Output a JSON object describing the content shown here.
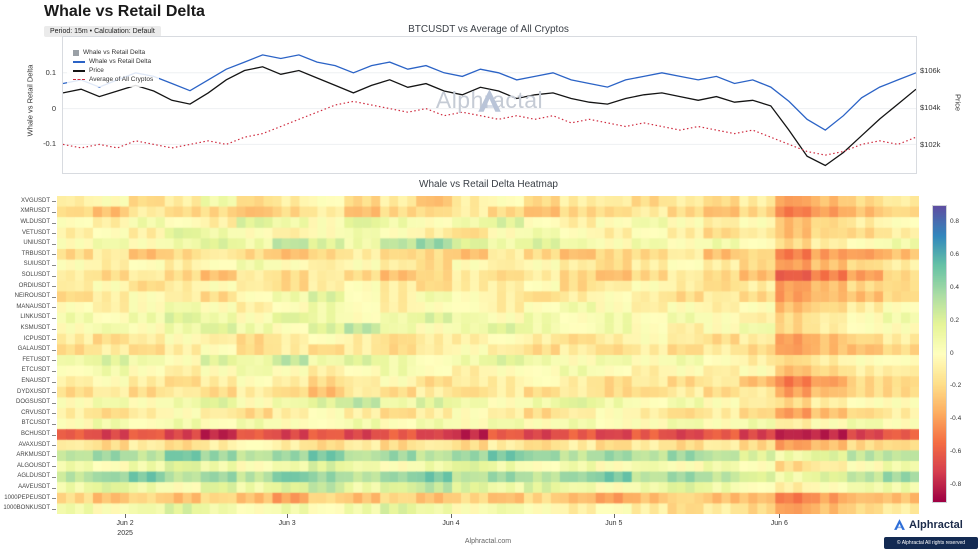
{
  "page": {
    "title": "Whale vs Retail Delta",
    "subtitle": "Period: 15m • Calculation: Default",
    "footer": "Alphractal.com",
    "watermark": "Alphractal",
    "brand": {
      "name": "Alphractal",
      "copyright": "© Alphractal All rights reserved"
    }
  },
  "colors": {
    "delta_blue": "#2b63c6",
    "price_black": "#141414",
    "avg_red": "#cf2b3f",
    "legend_gray": "#9aa0a6",
    "brand_navy": "#132a52",
    "logo_blue": "#2f6fd8"
  },
  "chart_data": [
    {
      "type": "line",
      "title": "BTCUSDT vs Average of All Cryptos",
      "ylabel_left": "Whale vs Retail Delta",
      "ylabel_right": "Price",
      "ylim_left": [
        -0.18,
        0.2
      ],
      "ylim_right": [
        100.5,
        107.8
      ],
      "yticks_left": [
        0.1,
        0,
        -0.1
      ],
      "ytick_labels_left": [
        "0.1",
        "0",
        "-0.1"
      ],
      "yticks_right": [
        106,
        104,
        102
      ],
      "ytick_labels_right": [
        "$106k",
        "$104k",
        "$102k"
      ],
      "legend": [
        {
          "label": "Whale vs Retail Delta",
          "type": "square",
          "color": "#9aa0a6"
        },
        {
          "label": "Whale vs Retail Delta",
          "type": "line",
          "color": "#2b63c6"
        },
        {
          "label": "Price",
          "type": "line",
          "color": "#141414"
        },
        {
          "label": "Average of All Cryptos",
          "type": "dashed",
          "color": "#cf2b3f"
        }
      ],
      "series": [
        {
          "name": "Whale vs Retail Delta",
          "axis": "left",
          "color": "#2b63c6",
          "style": "solid",
          "width": 1.3,
          "values": [
            0.07,
            0.08,
            0.06,
            0.08,
            0.1,
            0.09,
            0.07,
            0.05,
            0.08,
            0.11,
            0.13,
            0.15,
            0.14,
            0.15,
            0.13,
            0.12,
            0.1,
            0.12,
            0.13,
            0.11,
            0.12,
            0.1,
            0.09,
            0.11,
            0.1,
            0.08,
            0.09,
            0.1,
            0.08,
            0.07,
            0.06,
            0.08,
            0.09,
            0.1,
            0.09,
            0.08,
            0.09,
            0.07,
            0.08,
            0.06,
            0.02,
            -0.03,
            -0.06,
            -0.02,
            0.03,
            0.06,
            0.08,
            0.1
          ]
        },
        {
          "name": "Price",
          "axis": "right",
          "color": "#141414",
          "style": "solid",
          "width": 1.3,
          "values": [
            104.8,
            105.0,
            104.6,
            104.9,
            105.2,
            104.9,
            104.4,
            104.2,
            104.8,
            105.5,
            106.0,
            106.2,
            105.8,
            106.0,
            105.6,
            105.2,
            104.8,
            105.2,
            105.5,
            105.1,
            105.3,
            104.9,
            104.7,
            105.1,
            104.9,
            104.5,
            104.7,
            104.8,
            104.5,
            104.3,
            104.2,
            104.5,
            104.7,
            104.8,
            104.6,
            104.4,
            104.6,
            104.3,
            104.4,
            104.1,
            102.8,
            101.4,
            100.9,
            101.6,
            102.5,
            103.4,
            104.2,
            105.0
          ]
        },
        {
          "name": "Average of All Cryptos",
          "axis": "left",
          "color": "#cf2b3f",
          "style": "dotted",
          "width": 1.2,
          "values": [
            -0.1,
            -0.11,
            -0.1,
            -0.11,
            -0.09,
            -0.1,
            -0.11,
            -0.1,
            -0.09,
            -0.1,
            -0.08,
            -0.07,
            -0.05,
            -0.03,
            -0.01,
            0.01,
            0.02,
            0.01,
            0.0,
            -0.01,
            0.0,
            -0.02,
            -0.01,
            -0.02,
            -0.03,
            -0.02,
            -0.03,
            -0.02,
            -0.04,
            -0.03,
            -0.04,
            -0.05,
            -0.04,
            -0.05,
            -0.06,
            -0.05,
            -0.06,
            -0.07,
            -0.06,
            -0.08,
            -0.1,
            -0.12,
            -0.13,
            -0.12,
            -0.1,
            -0.09,
            -0.1,
            -0.08
          ]
        }
      ]
    },
    {
      "type": "heatmap",
      "title": "Whale vs Retail Delta Heatmap",
      "rows": [
        "XVGUSDT",
        "XMRUSDT",
        "WLDUSDT",
        "VETUSDT",
        "UNIUSDT",
        "TRBUSDT",
        "SUIUSDT",
        "SOLUSDT",
        "ORDIUSDT",
        "NEIROUSDT",
        "MANAUSDT",
        "LINKUSDT",
        "KSMUSDT",
        "ICPUSDT",
        "GALAUSDT",
        "FETUSDT",
        "ETCUSDT",
        "ENAUSDT",
        "DYDXUSDT",
        "DOGSUSDT",
        "CRVUSDT",
        "BTCUSDT",
        "BCHUSDT",
        "AVAXUSDT",
        "ARKMUSDT",
        "ALGOUSDT",
        "AGLDUSDT",
        "AAVEUSDT",
        "1000PEPEUSDT",
        "1000BONKUSDT"
      ],
      "x_tick_labels": [
        "Jun 2",
        "Jun 3",
        "Jun 4",
        "Jun 5",
        "Jun 6"
      ],
      "x_tick_positions": [
        0.079,
        0.267,
        0.457,
        0.646,
        0.838
      ],
      "x_year_label": "2025",
      "colorbar": {
        "vmin": -0.9,
        "vmax": 0.9,
        "ticks": [
          0.8,
          0.6,
          0.4,
          0.2,
          0,
          -0.2,
          -0.4,
          -0.6,
          -0.8
        ],
        "tick_labels": [
          "0.8",
          "0.6",
          "0.4",
          "0.2",
          "0",
          "-0.2",
          "-0.4",
          "-0.6",
          "-0.8"
        ]
      },
      "values": [
        [
          -0.1,
          0.0,
          -0.2,
          -0.1,
          0.1,
          -0.2,
          -0.1,
          0.0,
          -0.2,
          -0.1,
          -0.3,
          -0.1,
          0.0,
          -0.2,
          -0.1,
          -0.1,
          -0.2,
          -0.1,
          -0.2,
          -0.1,
          -0.4,
          -0.3,
          -0.2,
          -0.1
        ],
        [
          -0.2,
          -0.3,
          -0.1,
          -0.2,
          -0.2,
          -0.3,
          -0.2,
          -0.1,
          -0.3,
          -0.2,
          -0.2,
          -0.1,
          -0.2,
          -0.3,
          -0.2,
          -0.2,
          -0.1,
          -0.2,
          -0.3,
          -0.2,
          -0.5,
          -0.4,
          -0.3,
          -0.2
        ],
        [
          0.0,
          -0.1,
          0.1,
          0.0,
          -0.1,
          0.2,
          0.1,
          0.0,
          0.2,
          0.1,
          0.0,
          0.1,
          0.2,
          0.0,
          -0.1,
          0.0,
          0.1,
          0.0,
          -0.1,
          0.0,
          -0.3,
          -0.2,
          -0.1,
          0.0
        ],
        [
          -0.1,
          0.0,
          -0.1,
          0.2,
          0.1,
          0.0,
          -0.1,
          0.0,
          0.1,
          0.0,
          -0.1,
          -0.2,
          0.0,
          0.1,
          0.0,
          -0.1,
          0.0,
          -0.1,
          -0.2,
          -0.1,
          -0.3,
          -0.2,
          -0.2,
          -0.1
        ],
        [
          0.0,
          0.1,
          0.0,
          0.1,
          0.2,
          0.1,
          0.3,
          0.2,
          0.1,
          0.3,
          0.4,
          0.2,
          0.1,
          0.2,
          0.1,
          0.0,
          0.1,
          0.0,
          0.1,
          0.0,
          -0.2,
          -0.1,
          0.0,
          0.1
        ],
        [
          -0.2,
          -0.1,
          -0.3,
          -0.2,
          -0.1,
          -0.2,
          -0.3,
          -0.2,
          -0.1,
          -0.2,
          -0.2,
          -0.3,
          -0.1,
          -0.2,
          -0.3,
          -0.2,
          -0.2,
          -0.1,
          -0.3,
          -0.2,
          -0.5,
          -0.4,
          -0.4,
          -0.3
        ],
        [
          0.0,
          -0.1,
          0.0,
          -0.1,
          0.0,
          0.1,
          0.0,
          -0.1,
          0.0,
          -0.1,
          -0.2,
          0.0,
          -0.1,
          0.0,
          -0.1,
          -0.2,
          -0.1,
          0.0,
          -0.1,
          -0.2,
          -0.4,
          -0.3,
          -0.2,
          -0.1
        ],
        [
          -0.1,
          -0.2,
          -0.1,
          -0.2,
          -0.3,
          -0.1,
          -0.2,
          -0.1,
          -0.2,
          -0.3,
          -0.2,
          -0.1,
          -0.2,
          -0.1,
          -0.2,
          -0.3,
          -0.2,
          -0.1,
          -0.2,
          -0.3,
          -0.6,
          -0.5,
          -0.4,
          -0.2
        ],
        [
          -0.1,
          0.0,
          -0.2,
          -0.1,
          0.0,
          -0.1,
          -0.2,
          -0.1,
          0.0,
          -0.1,
          -0.2,
          -0.1,
          -0.1,
          0.0,
          -0.2,
          -0.1,
          0.0,
          -0.1,
          -0.2,
          -0.1,
          -0.4,
          -0.3,
          -0.2,
          -0.2
        ],
        [
          -0.2,
          -0.1,
          0.0,
          -0.1,
          -0.2,
          0.0,
          0.1,
          0.2,
          0.0,
          -0.1,
          0.1,
          0.0,
          -0.1,
          -0.2,
          -0.1,
          0.0,
          -0.1,
          -0.2,
          -0.1,
          -0.2,
          -0.4,
          -0.3,
          -0.3,
          -0.2
        ],
        [
          0.0,
          -0.1,
          0.0,
          0.1,
          0.0,
          -0.1,
          0.0,
          0.1,
          0.0,
          -0.1,
          0.0,
          0.0,
          -0.1,
          0.0,
          0.1,
          0.0,
          -0.1,
          0.0,
          -0.1,
          0.0,
          -0.3,
          -0.2,
          -0.1,
          0.0
        ],
        [
          0.1,
          0.0,
          0.1,
          0.2,
          0.1,
          0.0,
          0.2,
          0.1,
          0.0,
          0.1,
          0.2,
          0.1,
          0.0,
          0.1,
          0.0,
          0.1,
          0.0,
          0.1,
          0.0,
          -0.1,
          -0.2,
          -0.1,
          0.0,
          0.1
        ],
        [
          0.0,
          0.1,
          0.0,
          0.1,
          0.2,
          0.1,
          0.0,
          0.2,
          0.3,
          0.1,
          0.0,
          0.1,
          0.2,
          0.1,
          0.0,
          0.1,
          0.0,
          -0.1,
          0.0,
          0.1,
          -0.2,
          -0.1,
          0.0,
          0.0
        ],
        [
          -0.1,
          -0.2,
          -0.1,
          0.0,
          -0.1,
          -0.2,
          -0.1,
          0.0,
          -0.1,
          -0.2,
          -0.1,
          -0.1,
          0.0,
          -0.1,
          -0.2,
          -0.1,
          0.0,
          -0.1,
          -0.2,
          -0.1,
          -0.4,
          -0.3,
          -0.2,
          -0.1
        ],
        [
          -0.2,
          -0.1,
          -0.2,
          -0.1,
          0.0,
          -0.2,
          -0.1,
          -0.2,
          -0.1,
          -0.2,
          -0.1,
          0.0,
          -0.1,
          -0.2,
          -0.1,
          -0.2,
          -0.1,
          -0.2,
          -0.1,
          -0.2,
          -0.4,
          -0.3,
          -0.3,
          -0.2
        ],
        [
          0.1,
          0.2,
          0.1,
          0.0,
          0.2,
          0.1,
          0.3,
          0.1,
          0.2,
          0.1,
          0.0,
          0.1,
          0.2,
          0.1,
          0.0,
          0.1,
          0.0,
          0.1,
          0.0,
          -0.1,
          -0.2,
          -0.1,
          0.0,
          0.0
        ],
        [
          0.0,
          0.1,
          0.0,
          -0.1,
          0.0,
          0.1,
          0.0,
          -0.1,
          0.0,
          0.1,
          0.0,
          -0.1,
          0.0,
          0.0,
          0.1,
          0.0,
          -0.1,
          0.0,
          -0.1,
          0.0,
          -0.3,
          -0.2,
          -0.1,
          -0.1
        ],
        [
          -0.1,
          0.0,
          -0.1,
          -0.2,
          -0.1,
          0.0,
          -0.1,
          -0.2,
          -0.1,
          0.0,
          -0.2,
          -0.1,
          -0.1,
          0.0,
          -0.1,
          -0.2,
          -0.1,
          -0.2,
          -0.1,
          -0.3,
          -0.5,
          -0.4,
          -0.2,
          -0.2
        ],
        [
          -0.2,
          -0.1,
          -0.2,
          -0.1,
          -0.2,
          -0.1,
          -0.2,
          -0.3,
          -0.1,
          -0.2,
          -0.1,
          -0.2,
          -0.1,
          -0.2,
          -0.1,
          -0.2,
          -0.2,
          -0.1,
          -0.2,
          -0.1,
          -0.4,
          -0.3,
          -0.2,
          -0.2
        ],
        [
          0.0,
          0.1,
          0.0,
          0.1,
          0.2,
          0.0,
          0.1,
          0.2,
          0.3,
          0.1,
          0.2,
          0.1,
          0.0,
          0.1,
          0.2,
          0.1,
          0.0,
          0.1,
          0.0,
          -0.1,
          -0.2,
          -0.1,
          0.0,
          0.0
        ],
        [
          -0.1,
          -0.2,
          -0.1,
          0.0,
          -0.1,
          -0.2,
          -0.1,
          0.0,
          -0.1,
          -0.2,
          -0.1,
          0.0,
          -0.1,
          -0.2,
          -0.1,
          0.0,
          -0.1,
          -0.2,
          -0.1,
          -0.2,
          -0.4,
          -0.3,
          -0.2,
          -0.1
        ],
        [
          0.0,
          0.1,
          0.0,
          0.1,
          0.0,
          0.1,
          0.0,
          0.0,
          0.1,
          0.0,
          0.1,
          0.0,
          0.1,
          0.0,
          0.1,
          0.0,
          0.0,
          0.1,
          0.0,
          0.1,
          -0.1,
          0.0,
          0.1,
          0.0
        ],
        [
          -0.6,
          -0.7,
          -0.6,
          -0.7,
          -0.8,
          -0.6,
          -0.7,
          -0.6,
          -0.7,
          -0.6,
          -0.7,
          -0.8,
          -0.6,
          -0.7,
          -0.6,
          -0.7,
          -0.6,
          -0.7,
          -0.6,
          -0.7,
          -0.8,
          -0.8,
          -0.7,
          -0.6
        ],
        [
          -0.1,
          -0.2,
          -0.1,
          -0.2,
          -0.1,
          0.0,
          -0.1,
          -0.2,
          -0.1,
          -0.2,
          -0.1,
          -0.2,
          -0.1,
          -0.2,
          -0.1,
          -0.2,
          -0.1,
          -0.2,
          -0.1,
          -0.2,
          -0.4,
          -0.3,
          -0.2,
          -0.2
        ],
        [
          0.3,
          0.4,
          0.3,
          0.5,
          0.4,
          0.3,
          0.4,
          0.5,
          0.3,
          0.4,
          0.3,
          0.4,
          0.5,
          0.4,
          0.3,
          0.4,
          0.3,
          0.4,
          0.3,
          0.2,
          0.1,
          0.2,
          0.3,
          0.3
        ],
        [
          0.1,
          0.0,
          0.1,
          0.2,
          0.1,
          0.0,
          0.1,
          0.2,
          0.1,
          0.0,
          0.1,
          0.2,
          0.1,
          0.0,
          0.1,
          0.0,
          0.1,
          0.0,
          0.1,
          0.0,
          -0.2,
          -0.1,
          0.0,
          0.1
        ],
        [
          0.3,
          0.4,
          0.5,
          0.3,
          0.4,
          0.3,
          0.5,
          0.4,
          0.3,
          0.4,
          0.5,
          0.3,
          0.4,
          0.3,
          0.4,
          0.5,
          0.3,
          0.4,
          0.3,
          0.2,
          0.1,
          0.2,
          0.3,
          0.4
        ],
        [
          0.1,
          0.2,
          0.1,
          0.0,
          0.2,
          0.1,
          0.2,
          0.3,
          0.1,
          0.2,
          0.3,
          0.2,
          0.1,
          0.2,
          0.1,
          0.0,
          0.1,
          0.2,
          0.1,
          0.0,
          -0.1,
          0.0,
          0.1,
          0.1
        ],
        [
          -0.2,
          -0.3,
          -0.2,
          -0.3,
          -0.2,
          -0.3,
          -0.4,
          -0.2,
          -0.3,
          -0.2,
          -0.3,
          -0.2,
          -0.3,
          -0.2,
          -0.3,
          -0.4,
          -0.3,
          -0.2,
          -0.3,
          -0.3,
          -0.5,
          -0.4,
          -0.3,
          -0.3
        ],
        [
          0.1,
          0.0,
          0.1,
          0.2,
          0.1,
          0.0,
          0.1,
          0.0,
          0.1,
          0.2,
          0.1,
          0.0,
          0.1,
          0.0,
          -0.1,
          0.0,
          -0.1,
          -0.2,
          -0.1,
          -0.2,
          -0.4,
          -0.3,
          -0.2,
          -0.1
        ]
      ]
    }
  ]
}
